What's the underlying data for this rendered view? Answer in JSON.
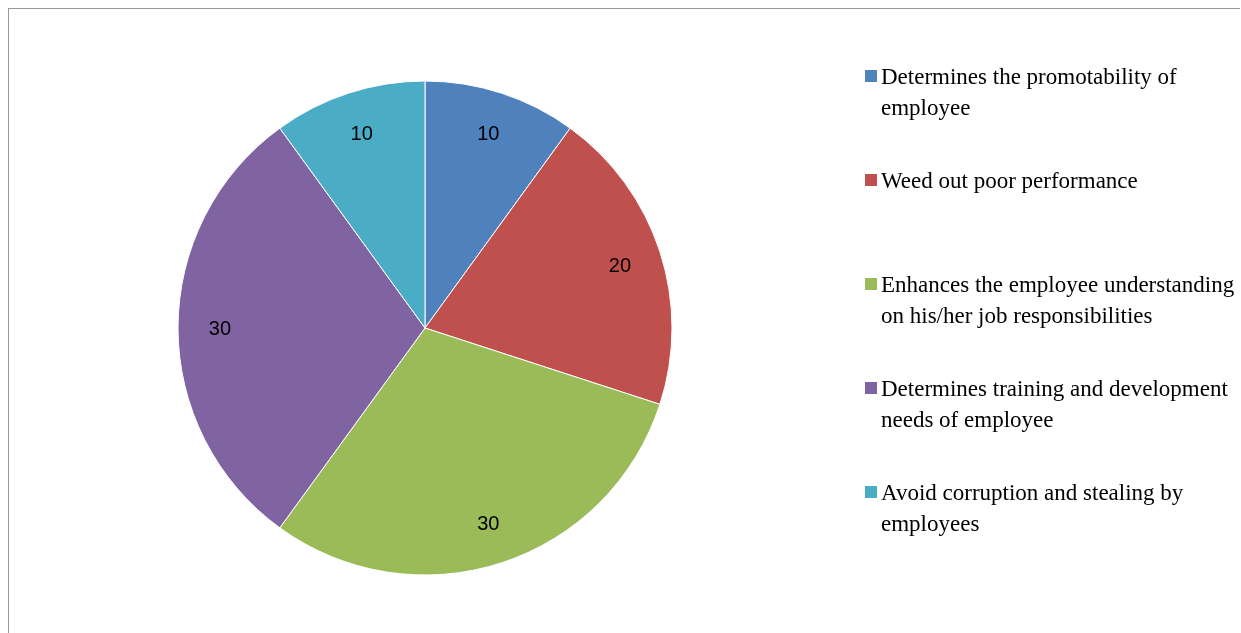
{
  "chart_data": {
    "type": "pie",
    "categories": [
      "Determines the promotability of employee",
      "Weed out poor performance",
      "Enhances the employee understanding on his/her job responsibilities",
      "Determines training and development needs of employee",
      "Avoid corruption and stealing by employees"
    ],
    "values": [
      10,
      20,
      30,
      30,
      10
    ],
    "colors": [
      "#4f81bd",
      "#c0504d",
      "#9bbb59",
      "#8064a2",
      "#4bacc6"
    ],
    "data_labels": true,
    "legend": "right"
  }
}
